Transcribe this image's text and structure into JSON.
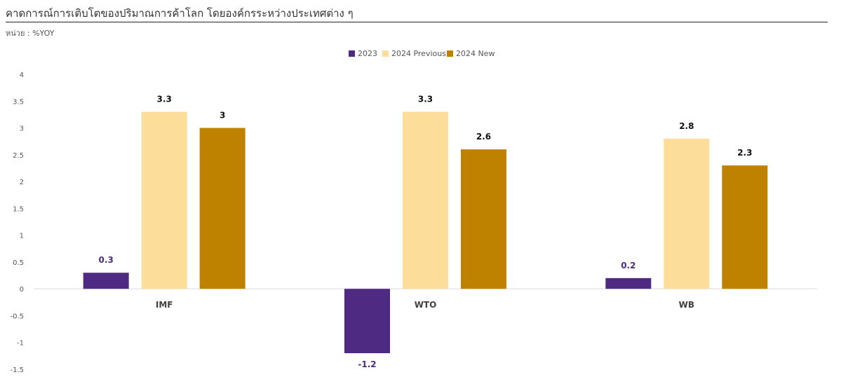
{
  "header": {
    "title": "คาดการณ์การเติบโตของปริมาณการค้าโลก โดยองค์กรระหว่างประเทศต่าง ๆ",
    "unit": "หน่วย : %YOY"
  },
  "chart_data": {
    "type": "bar",
    "categories": [
      "IMF",
      "WTO",
      "WB"
    ],
    "series": [
      {
        "name": "2023",
        "values": [
          0.3,
          -1.2,
          0.2
        ],
        "color": "#4f2a82",
        "label_color": "#4f2a82"
      },
      {
        "name": "2024 Previous",
        "values": [
          3.3,
          3.3,
          2.8
        ],
        "color": "#fddd9a",
        "label_color": "#111111"
      },
      {
        "name": "2024 New",
        "values": [
          3,
          2.6,
          2.3
        ],
        "color": "#bf8200",
        "label_color": "#111111"
      }
    ],
    "data_labels": [
      [
        "0.3",
        "-1.2",
        "0.2"
      ],
      [
        "3.3",
        "3.3",
        "2.8"
      ],
      [
        "3",
        "2.6",
        "2.3"
      ]
    ],
    "y_ticks": [
      "4",
      "3.5",
      "3",
      "2.5",
      "2",
      "1.5",
      "1",
      "0.5",
      "0",
      "-0.5",
      "-1",
      "-1.5"
    ],
    "ylim": [
      -1.5,
      4
    ],
    "legend_position": "top-center",
    "grid": false
  }
}
